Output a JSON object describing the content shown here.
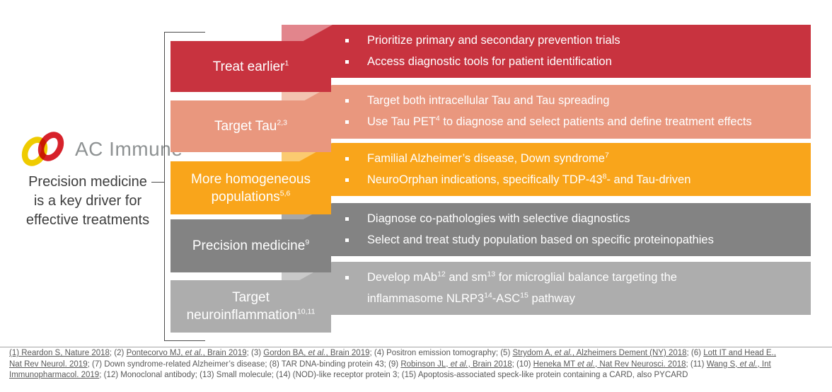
{
  "logo": {
    "text": "AC Immune",
    "yellow": "#efcb00",
    "red": "#d7222b",
    "text_color": "#8e9293"
  },
  "intro": {
    "lines": [
      "Precision medicine",
      "is a key driver for",
      "effective treatments"
    ]
  },
  "rows": [
    {
      "key": "treat-earlier",
      "band_color": "#c8333f",
      "fold_color": "#e2858c",
      "label": [
        {
          "t": "Treat earlier"
        },
        {
          "t": "1",
          "sup": true
        }
      ],
      "bullets": [
        [
          {
            "t": "Prioritize primary and secondary prevention trials"
          }
        ],
        [
          {
            "t": "Access diagnostic tools for patient identification"
          }
        ]
      ]
    },
    {
      "key": "target-tau",
      "band_color": "#e9977e",
      "fold_color": "#f3c3b0",
      "label": [
        {
          "t": "Target Tau"
        },
        {
          "t": "2,3",
          "sup": true
        }
      ],
      "bullets": [
        [
          {
            "t": "Target both intracellular Tau and Tau spreading"
          }
        ],
        [
          {
            "t": "Use Tau PET"
          },
          {
            "t": "4",
            "sup": true
          },
          {
            "t": " to diagnose and select patients and define treatment effects"
          }
        ]
      ]
    },
    {
      "key": "homogeneous-populations",
      "band_color": "#f9a51b",
      "fold_color": "#fbca70",
      "label": [
        {
          "t": "More homogeneous populations"
        },
        {
          "t": "5,6",
          "sup": true
        }
      ],
      "bullets": [
        [
          {
            "t": "Familial Alzheimer’s disease, Down syndrome"
          },
          {
            "t": "7",
            "sup": true
          }
        ],
        [
          {
            "t": "NeuroOrphan indications, specifically TDP-43"
          },
          {
            "t": "8",
            "sup": true
          },
          {
            "t": "- and Tau-driven"
          }
        ]
      ]
    },
    {
      "key": "precision-medicine",
      "band_color": "#838383",
      "fold_color": "#a7a7a7",
      "label": [
        {
          "t": "Precision medicine"
        },
        {
          "t": "9",
          "sup": true
        }
      ],
      "bullets": [
        [
          {
            "t": "Diagnose co-pathologies with selective diagnostics"
          }
        ],
        [
          {
            "t": "Select and treat study population based on specific proteinopathies"
          }
        ]
      ]
    },
    {
      "key": "target-neuroinflammation",
      "band_color": "#adadad",
      "fold_color": "#c9c9c9",
      "label": [
        {
          "t": "Target neuroinflammation"
        },
        {
          "t": "10,11",
          "sup": true
        }
      ],
      "bullets": [
        [
          {
            "t": "Develop mAb"
          },
          {
            "t": "12",
            "sup": true
          },
          {
            "t": " and sm"
          },
          {
            "t": "13",
            "sup": true
          },
          {
            "t": " for microglial balance targeting the"
          },
          {
            "br": true
          },
          {
            "t": "inflammasome NLRP3"
          },
          {
            "t": "14",
            "sup": true
          },
          {
            "t": "-ASC"
          },
          {
            "t": "15",
            "sup": true
          },
          {
            "t": " pathway"
          }
        ]
      ]
    }
  ],
  "footnote": {
    "lines": [
      [
        {
          "t": "(1) Reardon S, Nature 2018",
          "u": true
        },
        {
          "t": "; (2) "
        },
        {
          "t": "Pontecorvo MJ, ",
          "u": true
        },
        {
          "t": "et al.",
          "u": true,
          "i": true
        },
        {
          "t": ", Brain 2019",
          "u": true
        },
        {
          "t": "; (3) "
        },
        {
          "t": "Gordon BA, ",
          "u": true
        },
        {
          "t": "et al.",
          "u": true,
          "i": true
        },
        {
          "t": ", Brain 2019",
          "u": true
        },
        {
          "t": "; (4) Positron emission tomography; (5) "
        },
        {
          "t": "Strydom A, ",
          "u": true
        },
        {
          "t": "et al.",
          "u": true,
          "i": true
        },
        {
          "t": ", Alzheimers Dement (NY) 2018",
          "u": true
        },
        {
          "t": "; (6) "
        },
        {
          "t": "Lott IT and Head E.,",
          "u": true
        }
      ],
      [
        {
          "t": "Nat Rev Neurol. 2019",
          "u": true
        },
        {
          "t": "; (7) Down syndrome-related Alzheimer’s disease; (8) TAR DNA-binding protein 43; (9) "
        },
        {
          "t": "Robinson JL, ",
          "u": true
        },
        {
          "t": "et al.",
          "u": true,
          "i": true
        },
        {
          "t": ", Brain 2018",
          "u": true
        },
        {
          "t": "; (10) "
        },
        {
          "t": "Heneka MT ",
          "u": true
        },
        {
          "t": "et al.",
          "u": true,
          "i": true
        },
        {
          "t": ", Nat Rev Neurosci. 2018",
          "u": true
        },
        {
          "t": "; (11) "
        },
        {
          "t": "Wang S, ",
          "u": true
        },
        {
          "t": "et al.",
          "u": true,
          "i": true
        },
        {
          "t": ", Int",
          "u": true
        }
      ],
      [
        {
          "t": "Immunopharmacol. 2019",
          "u": true
        },
        {
          "t": "; (12) Monoclonal antibody; (13) Small molecule; (14) (NOD)-like receptor protein 3; (15) Apoptosis-associated speck-like protein containing a CARD, also PYCARD"
        }
      ]
    ]
  }
}
